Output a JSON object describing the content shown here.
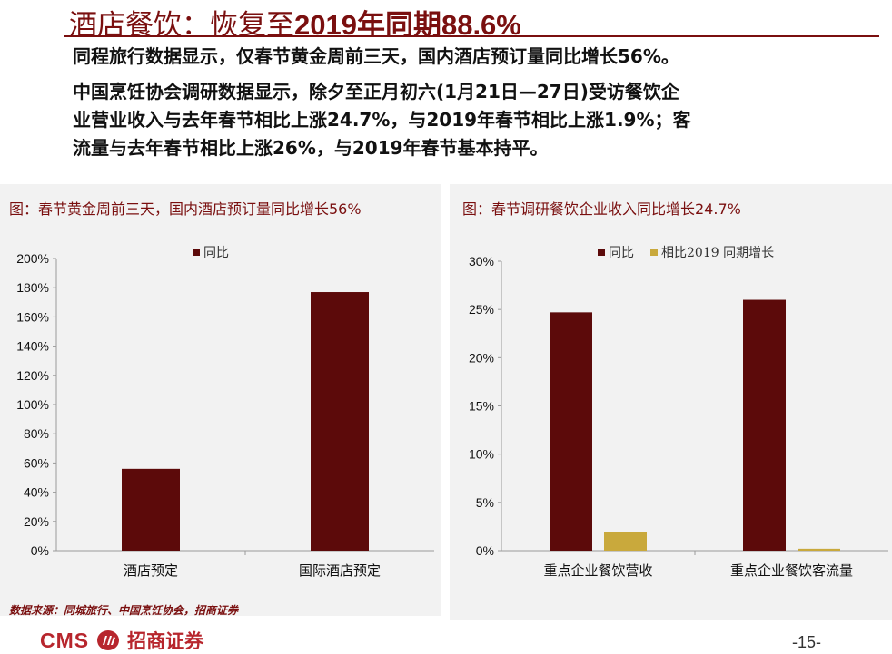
{
  "header": {
    "title_cn": "酒店餐饮：恢复至",
    "title_num": "2019年同期88.6%"
  },
  "body": {
    "para1": "同程旅行数据显示，仅春节黄金周前三天，国内酒店预订量同比增长56%。",
    "para2_lines": [
      "中国烹饪协会调研数据显示，除夕至正月初六(1月21日—27日)受访餐饮企",
      "业营业收入与去年春节相比上涨24.7%，与2019年春节相比上涨1.9%；客",
      "流量与去年春节相比上涨26%，与2019年春节基本持平。"
    ]
  },
  "chart_data": [
    {
      "type": "bar",
      "title": "图：春节黄金周前三天，国内酒店预订量同比增长56%",
      "categories": [
        "酒店预定",
        "国际酒店预定"
      ],
      "series": [
        {
          "name": "同比",
          "values": [
            56,
            177
          ],
          "color": "#5c0a0a"
        }
      ],
      "ylim": [
        0,
        200
      ],
      "yticks": [
        0,
        20,
        40,
        60,
        80,
        100,
        120,
        140,
        160,
        180,
        200
      ],
      "tick_suffix": "%",
      "grid": false,
      "legend": "top-center"
    },
    {
      "type": "bar",
      "title": "图：春节调研餐饮企业收入同比增长24.7%",
      "categories": [
        "重点企业餐饮营收",
        "重点企业餐饮客流量"
      ],
      "series": [
        {
          "name": "同比",
          "values": [
            24.7,
            26
          ],
          "color": "#5c0a0a"
        },
        {
          "name": "相比2019 同期增长",
          "values": [
            1.9,
            0.2
          ],
          "color": "#c9a93c"
        }
      ],
      "ylim": [
        0,
        30
      ],
      "yticks": [
        0,
        5,
        10,
        15,
        20,
        25,
        30
      ],
      "tick_suffix": "%",
      "grid": false,
      "legend": "top-center"
    }
  ],
  "footer": {
    "source": "数据来源：同城旅行、中国烹饪协会，招商证券",
    "logo_text": "CMS",
    "logo_cn": "招商证券",
    "page_number": "-15-"
  }
}
